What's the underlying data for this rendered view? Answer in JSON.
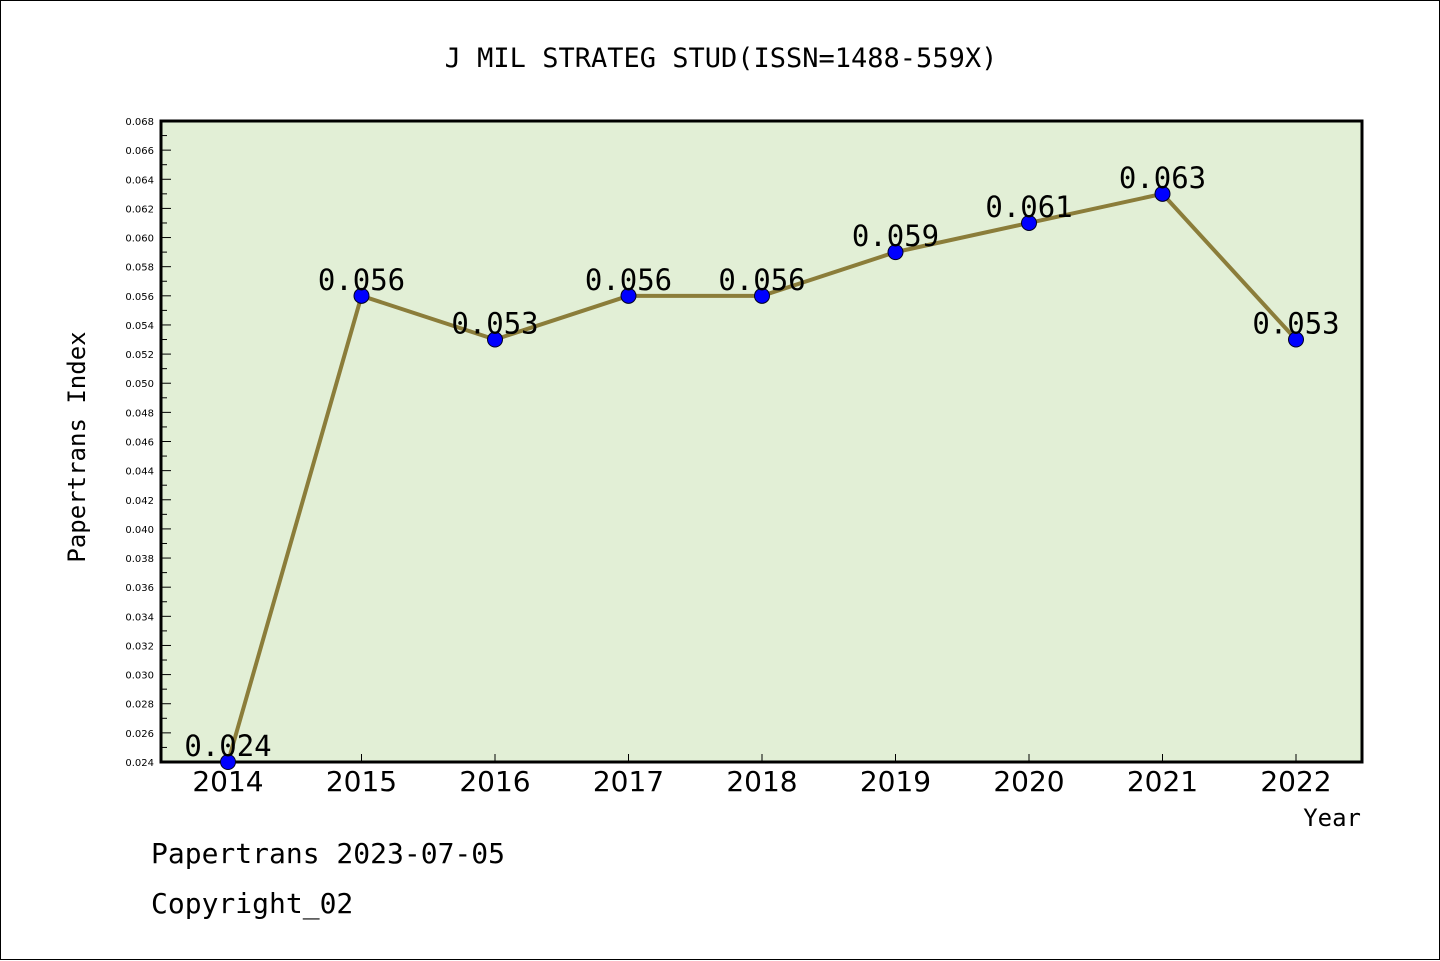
{
  "chart_data": {
    "type": "line",
    "title": "J MIL STRATEG STUD(ISSN=1488-559X)",
    "xlabel": "Year",
    "ylabel": "Papertrans Index",
    "categories": [
      "2014",
      "2015",
      "2016",
      "2017",
      "2018",
      "2019",
      "2020",
      "2021",
      "2022"
    ],
    "values": [
      0.024,
      0.056,
      0.053,
      0.056,
      0.056,
      0.059,
      0.061,
      0.063,
      0.053
    ],
    "data_labels": [
      "0.024",
      "0.056",
      "0.053",
      "0.056",
      "0.056",
      "0.059",
      "0.061",
      "0.063",
      "0.053"
    ],
    "ylim": [
      0.024,
      0.068
    ],
    "yticks": [
      "0.024",
      "0.026",
      "0.028",
      "0.030",
      "0.032",
      "0.034",
      "0.036",
      "0.038",
      "0.040",
      "0.042",
      "0.044",
      "0.046",
      "0.048",
      "0.050",
      "0.052",
      "0.054",
      "0.056",
      "0.058",
      "0.060",
      "0.062",
      "0.064",
      "0.066",
      "0.068"
    ],
    "grid": false,
    "colors": {
      "plot_background": "#e2efd6",
      "line": "#8b7d3a",
      "marker": "#0000ff"
    }
  },
  "footer": {
    "line1": "Papertrans 2023-07-05",
    "line2": "Copyright_02"
  }
}
